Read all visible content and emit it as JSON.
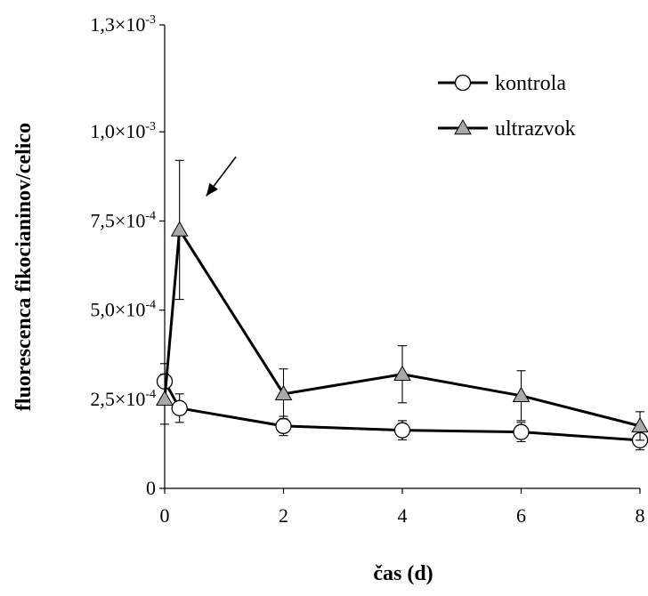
{
  "chart_data": {
    "type": "line",
    "xlabel": "čas (d)",
    "ylabel": "fluorescenca fikocianinov/celico",
    "xlim": [
      0,
      8
    ],
    "ylim": [
      0,
      0.0013
    ],
    "x_ticks": [
      0,
      2,
      4,
      6,
      8
    ],
    "x_tick_labels": [
      "0",
      "2",
      "4",
      "6",
      "8"
    ],
    "y_ticks": [
      0,
      0.00025,
      0.0005,
      0.00075,
      0.001,
      0.0013
    ],
    "y_tick_labels": [
      {
        "mantissa": "0",
        "exp": ""
      },
      {
        "mantissa": "2,5×10",
        "exp": "-4"
      },
      {
        "mantissa": "5,0×10",
        "exp": "-4"
      },
      {
        "mantissa": "7,5×10",
        "exp": "-4"
      },
      {
        "mantissa": "1,0×10",
        "exp": "-3"
      },
      {
        "mantissa": "1,3×10",
        "exp": "-3"
      }
    ],
    "grid": false,
    "legend_position": "top-right",
    "series": [
      {
        "name": "kontrola",
        "marker": "circle",
        "marker_fill": "#ffffff",
        "points": [
          {
            "x": 0,
            "y": 0.0003,
            "err": 5e-05
          },
          {
            "x": 0.25,
            "y": 0.000225,
            "err": 4e-05
          },
          {
            "x": 2,
            "y": 0.000175,
            "err": 2.7e-05
          },
          {
            "x": 4,
            "y": 0.000163,
            "err": 2.7e-05
          },
          {
            "x": 6,
            "y": 0.000158,
            "err": 2.7e-05
          },
          {
            "x": 8,
            "y": 0.000135,
            "err": 2.7e-05
          }
        ]
      },
      {
        "name": "ultrazvok",
        "marker": "triangle",
        "marker_fill": "#a9a9a9",
        "points": [
          {
            "x": 0,
            "y": 0.00025,
            "err": 7e-05
          },
          {
            "x": 0.25,
            "y": 0.000725,
            "err": 0.000195
          },
          {
            "x": 2,
            "y": 0.000265,
            "err": 7e-05
          },
          {
            "x": 4,
            "y": 0.00032,
            "err": 8e-05
          },
          {
            "x": 6,
            "y": 0.00026,
            "err": 7e-05
          },
          {
            "x": 8,
            "y": 0.000175,
            "err": 4e-05
          }
        ]
      }
    ],
    "annotations": [
      {
        "type": "arrow",
        "x_from": 1.2,
        "y_from": 0.00093,
        "x_to": 0.7,
        "y_to": 0.00082
      }
    ]
  },
  "colors": {
    "line": "#000000",
    "circle_fill": "#ffffff",
    "triangle_fill": "#a9a9a9"
  }
}
